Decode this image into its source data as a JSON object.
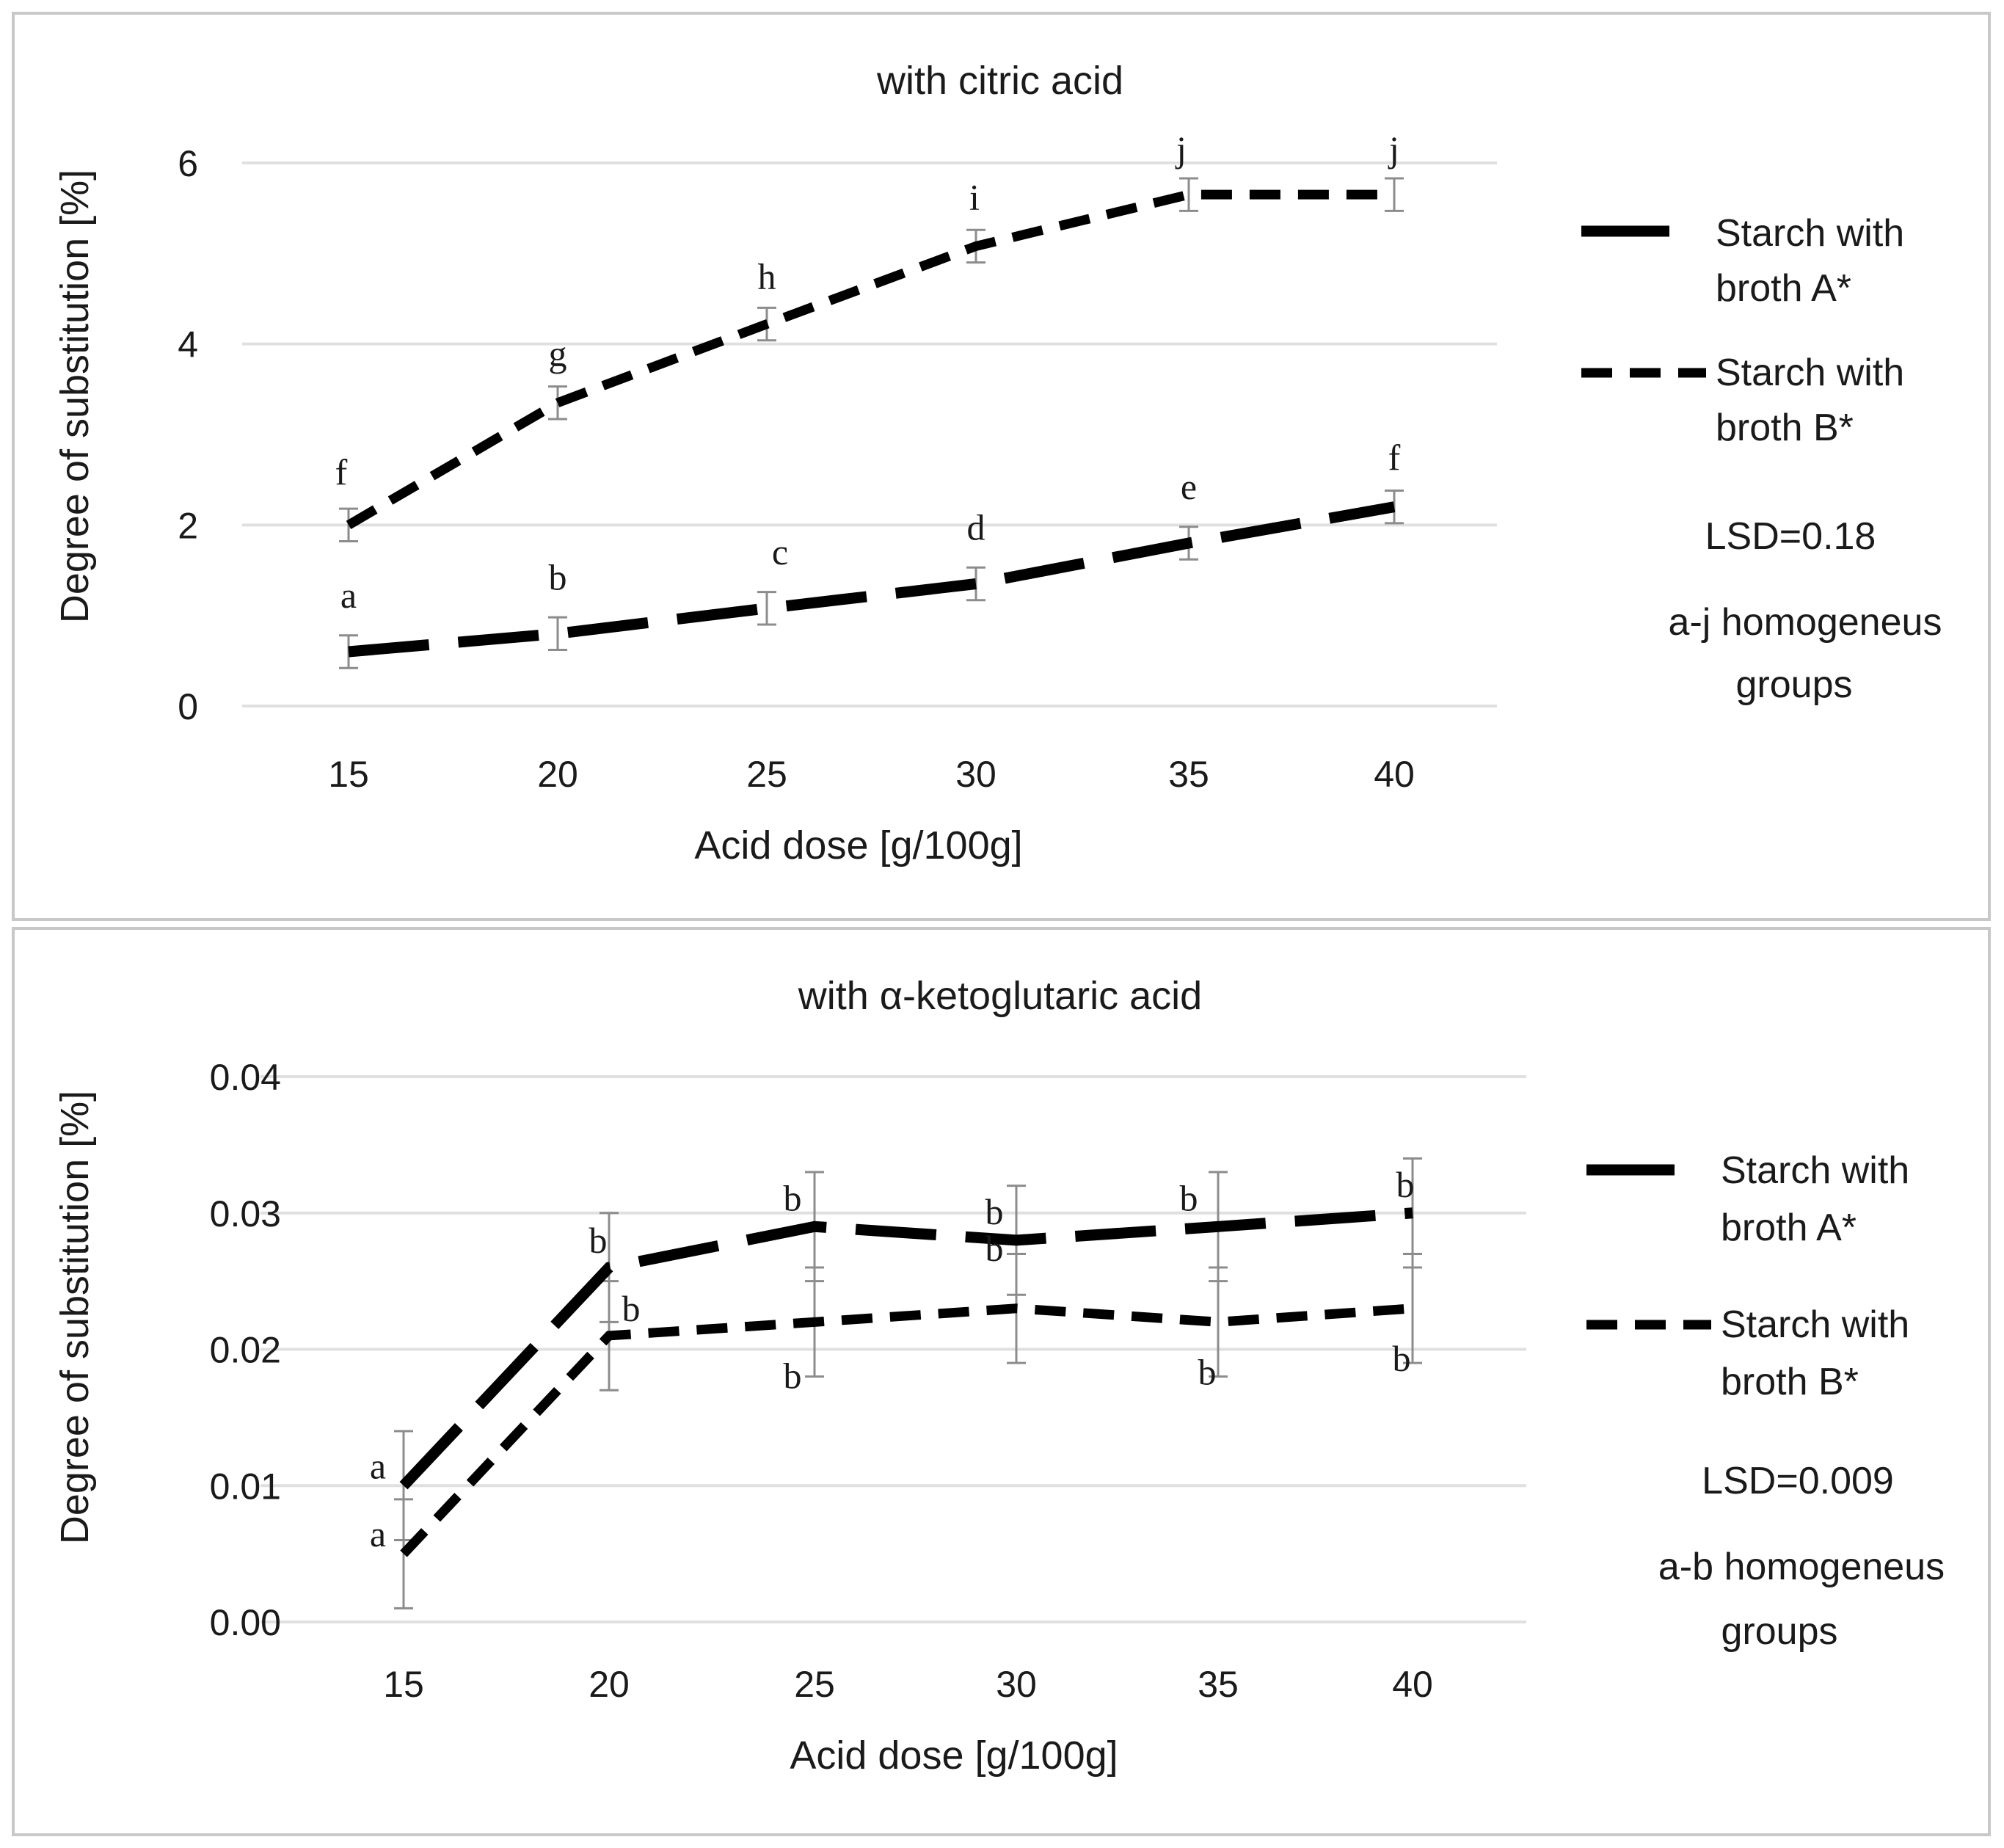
{
  "chart_data": [
    {
      "type": "line",
      "title": "with citric acid",
      "xlabel": "Acid dose [g/100g]",
      "ylabel": "Degree of substitution [%]",
      "categories": [
        "15",
        "20",
        "25",
        "30",
        "35",
        "40"
      ],
      "ylim": [
        0,
        6
      ],
      "yticks": [
        "0",
        "2",
        "4",
        "6"
      ],
      "ytick_values": [
        0,
        2,
        4,
        6
      ],
      "grid": true,
      "series": [
        {
          "name": "Starch with broth A*",
          "legend_line1": "Starch with",
          "legend_line2": "broth A*",
          "style": "long-dash",
          "values": [
            0.6,
            0.8,
            1.08,
            1.35,
            1.8,
            2.2
          ],
          "errors": [
            0.18,
            0.18,
            0.18,
            0.18,
            0.18,
            0.18
          ],
          "group_labels": [
            "a",
            "b",
            "c",
            "d",
            "e",
            "f"
          ]
        },
        {
          "name": "Starch with broth B*",
          "legend_line1": "Starch with",
          "legend_line2": "broth B*",
          "style": "short-dash",
          "values": [
            2.0,
            3.35,
            4.22,
            5.08,
            5.65,
            5.65
          ],
          "errors": [
            0.18,
            0.18,
            0.18,
            0.18,
            0.18,
            0.18
          ],
          "group_labels": [
            "f",
            "g",
            "h",
            "i",
            "j",
            "j"
          ]
        }
      ],
      "notes": [
        "LSD=0.18",
        "a-j homogeneus",
        "groups"
      ]
    },
    {
      "type": "line",
      "title": "with α-ketoglutaric acid",
      "xlabel": "Acid dose [g/100g]",
      "ylabel": "Degree of substitution [%]",
      "categories": [
        "15",
        "20",
        "25",
        "30",
        "35",
        "40"
      ],
      "ylim": [
        0,
        0.04
      ],
      "yticks": [
        "0.00",
        "0.01",
        "0.02",
        "0.03",
        "0.04"
      ],
      "ytick_values": [
        0,
        0.01,
        0.02,
        0.03,
        0.04
      ],
      "grid": true,
      "series": [
        {
          "name": "Starch with broth A*",
          "legend_line1": "Starch with",
          "legend_line2": "broth A*",
          "style": "long-dash",
          "values": [
            0.01,
            0.026,
            0.029,
            0.028,
            0.029,
            0.03
          ],
          "errors": [
            0.004,
            0.004,
            0.004,
            0.004,
            0.004,
            0.004
          ],
          "group_labels": [
            "a",
            "b",
            "b",
            "b",
            "b",
            "b"
          ]
        },
        {
          "name": "Starch with broth B*",
          "legend_line1": "Starch with",
          "legend_line2": "broth B*",
          "style": "short-dash",
          "values": [
            0.005,
            0.021,
            0.022,
            0.023,
            0.022,
            0.023
          ],
          "errors": [
            0.004,
            0.004,
            0.004,
            0.004,
            0.004,
            0.004
          ],
          "group_labels": [
            "a",
            "b",
            "b",
            "b",
            "b",
            "b"
          ]
        }
      ],
      "notes": [
        "LSD=0.009",
        "a-b homogeneus",
        "groups"
      ]
    }
  ]
}
